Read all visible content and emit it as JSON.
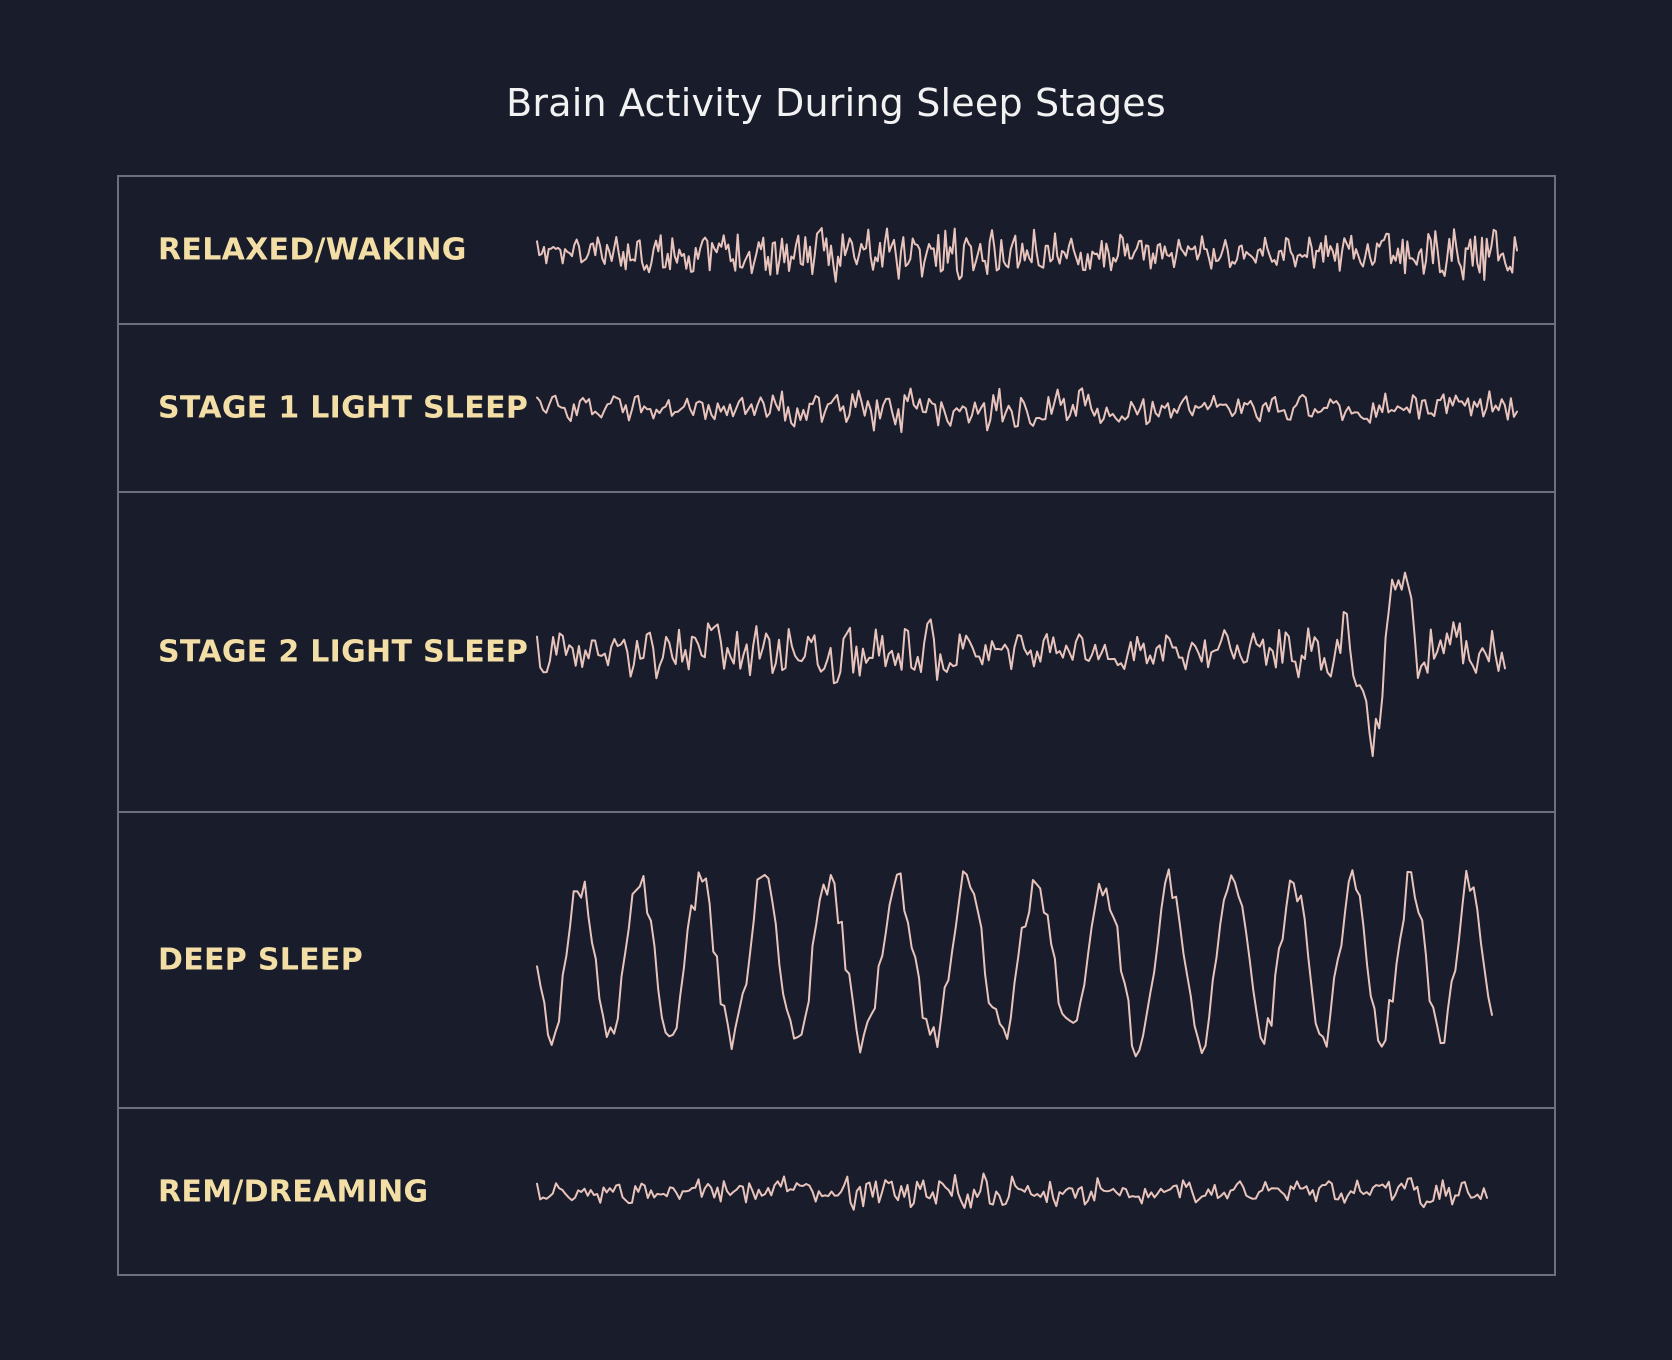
{
  "title": "Brain Activity During Sleep Stages",
  "colors": {
    "background": "#181c2b",
    "frame": "#6b6f7e",
    "label": "#f3dea6",
    "trace": "#e8c4bc",
    "title": "#f2f2f2"
  },
  "stages": [
    {
      "label": "RELAXED/WAKING",
      "pattern": "fast low-amplitude oscillation"
    },
    {
      "label": "STAGE 1 LIGHT SLEEP",
      "pattern": "slower low-amplitude oscillation"
    },
    {
      "label": "STAGE 2 LIGHT SLEEP",
      "pattern": "oscillation with spindles and a large K-complex"
    },
    {
      "label": "DEEP SLEEP",
      "pattern": "slow high-amplitude waves"
    },
    {
      "label": "REM/DREAMING",
      "pattern": "low-amplitude mixed-frequency oscillation"
    }
  ]
}
